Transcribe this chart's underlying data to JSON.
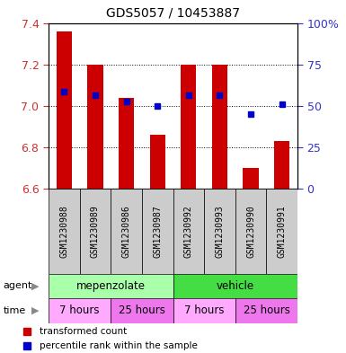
{
  "title": "GDS5057 / 10453887",
  "samples": [
    "GSM1230988",
    "GSM1230989",
    "GSM1230986",
    "GSM1230987",
    "GSM1230992",
    "GSM1230993",
    "GSM1230990",
    "GSM1230991"
  ],
  "bar_tops": [
    7.36,
    7.2,
    7.04,
    6.86,
    7.2,
    7.2,
    6.7,
    6.83
  ],
  "bar_bottom": 6.6,
  "percentile_values": [
    7.07,
    7.05,
    7.02,
    7.0,
    7.05,
    7.05,
    6.96,
    7.01
  ],
  "ylim_left": [
    6.6,
    7.4
  ],
  "ylim_right": [
    0,
    100
  ],
  "yticks_left": [
    6.6,
    6.8,
    7.0,
    7.2,
    7.4
  ],
  "yticks_right": [
    0,
    25,
    50,
    75,
    100
  ],
  "bar_color": "#cc0000",
  "dot_color": "#0000cc",
  "background_color": "#ffffff",
  "agent_groups": [
    {
      "label": "mepenzolate",
      "start": 0,
      "end": 4,
      "color": "#aaffaa"
    },
    {
      "label": "vehicle",
      "start": 4,
      "end": 8,
      "color": "#44dd44"
    }
  ],
  "time_groups": [
    {
      "label": "7 hours",
      "start": 0,
      "end": 2,
      "color": "#ffaaff"
    },
    {
      "label": "25 hours",
      "start": 2,
      "end": 4,
      "color": "#ee77ee"
    },
    {
      "label": "7 hours",
      "start": 4,
      "end": 6,
      "color": "#ffaaff"
    },
    {
      "label": "25 hours",
      "start": 6,
      "end": 8,
      "color": "#ee77ee"
    }
  ],
  "legend_items": [
    {
      "label": "transformed count",
      "color": "#cc0000"
    },
    {
      "label": "percentile rank within the sample",
      "color": "#0000cc"
    }
  ],
  "xaxis_bg": "#cccccc",
  "bar_width": 0.5,
  "figsize": [
    3.85,
    3.93
  ],
  "dpi": 100
}
